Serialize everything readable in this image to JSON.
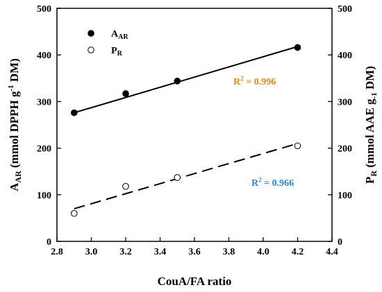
{
  "chart_data": {
    "type": "scatter",
    "xlabel": "CouA/FA ratio",
    "ylabel_left": {
      "main": "A",
      "sub": "AR",
      "mid": " (mmol DPPH g",
      "sup": "-1",
      "end": " DM)"
    },
    "ylabel_right": {
      "main": "P",
      "sub": "R",
      "mid": " (mmol AAE g",
      "sub2": "-1",
      "end": " DM)"
    },
    "xlim": [
      2.8,
      4.4
    ],
    "ylim": [
      0,
      500
    ],
    "x_ticks": [
      "2.8",
      "3.0",
      "3.2",
      "3.4",
      "3.6",
      "3.8",
      "4.0",
      "4.2",
      "4.4"
    ],
    "y_ticks": [
      "0",
      "100",
      "200",
      "300",
      "400",
      "500"
    ],
    "grid": false,
    "legend_position": "top-left",
    "series": [
      {
        "name_main": "A",
        "name_sub": "AR",
        "marker": "filled-circle",
        "line_style": "solid",
        "points": [
          {
            "x": 2.9,
            "y": 276
          },
          {
            "x": 3.2,
            "y": 317
          },
          {
            "x": 3.5,
            "y": 344
          },
          {
            "x": 4.2,
            "y": 416
          }
        ],
        "fit": {
          "x0": 2.9,
          "y0": 276,
          "x1": 4.2,
          "y1": 418
        },
        "r2_text": "R",
        "r2_sup": "2",
        "r2_value": " = 0.996",
        "r2_color": "#E8861C"
      },
      {
        "name_main": "P",
        "name_sub": "R",
        "marker": "open-circle",
        "line_style": "dashed",
        "points": [
          {
            "x": 2.9,
            "y": 60
          },
          {
            "x": 3.2,
            "y": 118
          },
          {
            "x": 3.5,
            "y": 137
          },
          {
            "x": 4.2,
            "y": 205
          }
        ],
        "fit": {
          "x0": 2.9,
          "y0": 70,
          "x1": 4.2,
          "y1": 210
        },
        "r2_text": "R",
        "r2_sup": "2",
        "r2_value": " = 0.966",
        "r2_color": "#2E86D6"
      }
    ]
  }
}
